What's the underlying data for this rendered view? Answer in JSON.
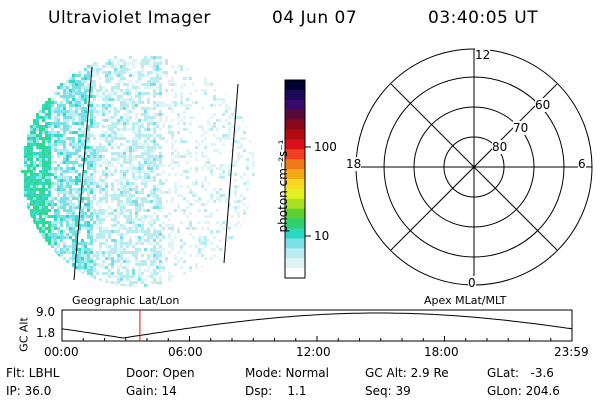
{
  "header": {
    "instrument": "Ultraviolet Imager",
    "date": "04 Jun 07",
    "time": "03:40:05 UT"
  },
  "colorbar": {
    "unit_label": "photon cm⁻²s⁻¹",
    "ticks": [
      "100",
      "10"
    ],
    "colors": [
      "#000033",
      "#1a0a5a",
      "#3a0a6a",
      "#5a0a3a",
      "#8a0a1a",
      "#b00a10",
      "#d8101a",
      "#f04020",
      "#f07a18",
      "#f4a818",
      "#f8d820",
      "#e0f020",
      "#a8e020",
      "#5ad030",
      "#30d070",
      "#28d8c0",
      "#7ae0e8",
      "#b8ecf0",
      "#dff4f6",
      "#ffffff"
    ]
  },
  "polar_plot": {
    "mlt_labels": {
      "top": "12",
      "right": "6",
      "bottom": "0",
      "left": "18"
    },
    "lat_labels": [
      "60",
      "70",
      "80"
    ]
  },
  "timeline": {
    "y_axis_label": "GC Alt",
    "y_ticks": [
      "9.0",
      "1.8"
    ],
    "left_title": "Geographic Lat/Lon",
    "right_title": "Apex MLat/MLT",
    "x_ticks": [
      "00:00",
      "06:00",
      "12:00",
      "18:00",
      "23:59"
    ],
    "current_marker_fraction": 0.1528
  },
  "status": {
    "flt": "Flt: LBHL",
    "ip": "IP: 36.0",
    "door": "Door: Open",
    "gain": "Gain: 14",
    "mode": "Mode: Normal",
    "dsp": "Dsp:    1.1",
    "gc_alt": "GC Alt: 2.9 Re",
    "seq": "Seq: 39",
    "glat": "GLat:   -3.6",
    "glon": "GLon: 204.6"
  }
}
